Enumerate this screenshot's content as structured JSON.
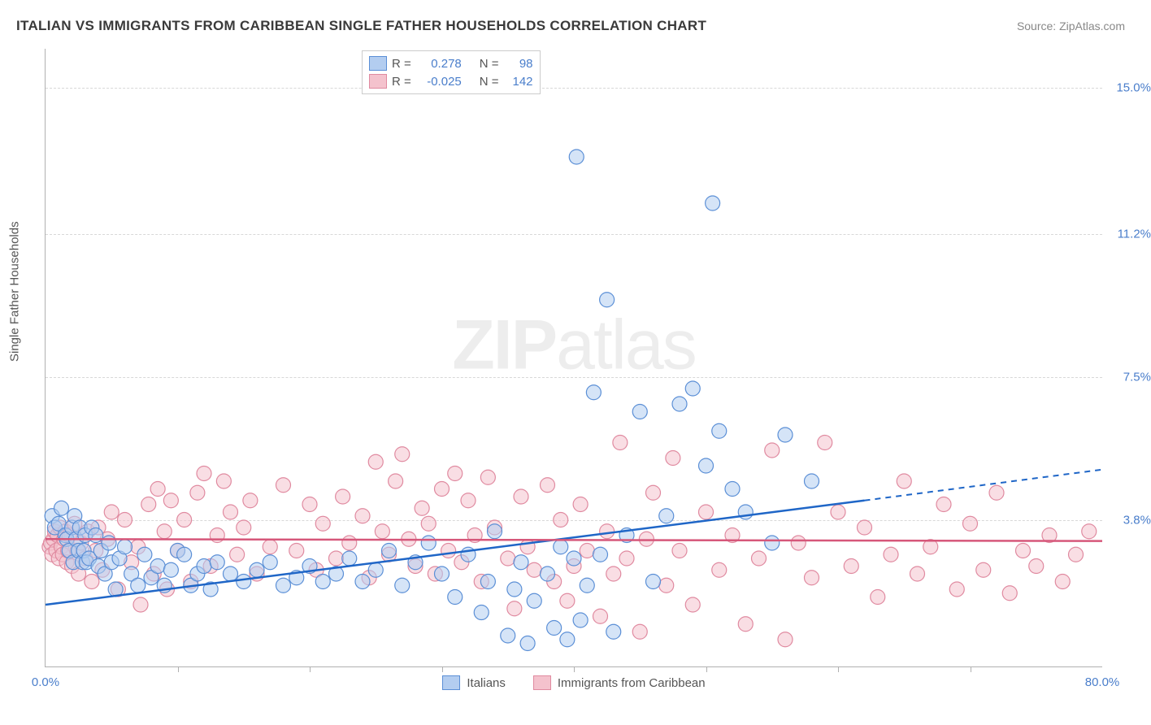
{
  "title": "ITALIAN VS IMMIGRANTS FROM CARIBBEAN SINGLE FATHER HOUSEHOLDS CORRELATION CHART",
  "source": "Source: ZipAtlas.com",
  "ylabel": "Single Father Households",
  "watermark_zip": "ZIP",
  "watermark_atlas": "atlas",
  "chart": {
    "type": "scatter-with-regression",
    "xlim": [
      0,
      80
    ],
    "ylim": [
      0,
      16
    ],
    "xticks_minor": [
      10,
      20,
      30,
      40,
      50,
      60,
      70
    ],
    "xtick_labels": [
      {
        "x": 0,
        "label": "0.0%"
      },
      {
        "x": 80,
        "label": "80.0%"
      }
    ],
    "ytick_labels": [
      {
        "y": 3.8,
        "label": "3.8%"
      },
      {
        "y": 7.5,
        "label": "7.5%"
      },
      {
        "y": 11.2,
        "label": "11.2%"
      },
      {
        "y": 15.0,
        "label": "15.0%"
      }
    ],
    "grid_color": "#d8d8d8",
    "background_color": "#ffffff",
    "marker_radius": 9,
    "marker_stroke_width": 1.2,
    "marker_opacity": 0.55,
    "series": [
      {
        "name": "Italians",
        "fill_color": "#b3cdf0",
        "stroke_color": "#5b8fd6",
        "line_color": "#1f66c7",
        "R": "0.278",
        "N": "98",
        "regression": {
          "y0": 1.6,
          "y_at_62": 4.3,
          "y80": 5.1,
          "x_solid_end": 62
        },
        "points": [
          [
            0.5,
            3.9
          ],
          [
            0.7,
            3.6
          ],
          [
            1.0,
            3.7
          ],
          [
            1.2,
            4.1
          ],
          [
            1.5,
            3.4
          ],
          [
            1.6,
            3.3
          ],
          [
            1.8,
            3.0
          ],
          [
            2.0,
            3.6
          ],
          [
            2.1,
            2.7
          ],
          [
            2.2,
            3.9
          ],
          [
            2.3,
            3.3
          ],
          [
            2.5,
            3.0
          ],
          [
            2.6,
            3.6
          ],
          [
            2.8,
            2.7
          ],
          [
            2.9,
            3.0
          ],
          [
            3.0,
            3.4
          ],
          [
            3.1,
            2.7
          ],
          [
            3.3,
            2.8
          ],
          [
            3.5,
            3.6
          ],
          [
            3.8,
            3.4
          ],
          [
            4.0,
            2.6
          ],
          [
            4.2,
            3.0
          ],
          [
            4.5,
            2.4
          ],
          [
            4.8,
            3.2
          ],
          [
            5.0,
            2.7
          ],
          [
            5.3,
            2.0
          ],
          [
            5.6,
            2.8
          ],
          [
            6.0,
            3.1
          ],
          [
            6.5,
            2.4
          ],
          [
            7.0,
            2.1
          ],
          [
            7.5,
            2.9
          ],
          [
            8.0,
            2.3
          ],
          [
            8.5,
            2.6
          ],
          [
            9.0,
            2.1
          ],
          [
            9.5,
            2.5
          ],
          [
            10.0,
            3.0
          ],
          [
            10.5,
            2.9
          ],
          [
            11.0,
            2.1
          ],
          [
            11.5,
            2.4
          ],
          [
            12.0,
            2.6
          ],
          [
            12.5,
            2.0
          ],
          [
            13.0,
            2.7
          ],
          [
            14.0,
            2.4
          ],
          [
            15.0,
            2.2
          ],
          [
            16.0,
            2.5
          ],
          [
            17.0,
            2.7
          ],
          [
            18.0,
            2.1
          ],
          [
            19.0,
            2.3
          ],
          [
            20.0,
            2.6
          ],
          [
            21.0,
            2.2
          ],
          [
            22.0,
            2.4
          ],
          [
            23.0,
            2.8
          ],
          [
            24.0,
            2.2
          ],
          [
            25.0,
            2.5
          ],
          [
            26.0,
            3.0
          ],
          [
            27.0,
            2.1
          ],
          [
            28.0,
            2.7
          ],
          [
            29.0,
            3.2
          ],
          [
            30.0,
            2.4
          ],
          [
            31.0,
            1.8
          ],
          [
            32.0,
            2.9
          ],
          [
            33.0,
            1.4
          ],
          [
            33.5,
            2.2
          ],
          [
            34.0,
            3.5
          ],
          [
            35.0,
            0.8
          ],
          [
            35.5,
            2.0
          ],
          [
            36.0,
            2.7
          ],
          [
            36.5,
            0.6
          ],
          [
            37.0,
            1.7
          ],
          [
            38.0,
            2.4
          ],
          [
            38.5,
            1.0
          ],
          [
            39.0,
            3.1
          ],
          [
            39.5,
            0.7
          ],
          [
            40.0,
            2.8
          ],
          [
            40.2,
            13.2
          ],
          [
            40.5,
            1.2
          ],
          [
            41.0,
            2.1
          ],
          [
            41.5,
            7.1
          ],
          [
            42.0,
            2.9
          ],
          [
            42.5,
            9.5
          ],
          [
            43.0,
            0.9
          ],
          [
            44.0,
            3.4
          ],
          [
            45.0,
            6.6
          ],
          [
            46.0,
            2.2
          ],
          [
            47.0,
            3.9
          ],
          [
            48.0,
            6.8
          ],
          [
            49.0,
            7.2
          ],
          [
            50.0,
            5.2
          ],
          [
            50.5,
            12.0
          ],
          [
            51.0,
            6.1
          ],
          [
            52.0,
            4.6
          ],
          [
            53.0,
            4.0
          ],
          [
            55.0,
            3.2
          ],
          [
            56.0,
            6.0
          ],
          [
            58.0,
            4.8
          ]
        ]
      },
      {
        "name": "Immigrants from Caribbean",
        "fill_color": "#f4c2cd",
        "stroke_color": "#e08aa0",
        "line_color": "#d6577a",
        "R": "-0.025",
        "N": "142",
        "regression": {
          "y0": 3.3,
          "y_at_62": 3.25,
          "y80": 3.24,
          "x_solid_end": 80
        },
        "points": [
          [
            0.3,
            3.1
          ],
          [
            0.4,
            3.2
          ],
          [
            0.5,
            2.9
          ],
          [
            0.6,
            3.3
          ],
          [
            0.7,
            3.5
          ],
          [
            0.8,
            3.0
          ],
          [
            0.9,
            3.4
          ],
          [
            1.0,
            2.8
          ],
          [
            1.1,
            3.6
          ],
          [
            1.2,
            3.1
          ],
          [
            1.3,
            2.9
          ],
          [
            1.4,
            3.3
          ],
          [
            1.5,
            3.5
          ],
          [
            1.6,
            2.7
          ],
          [
            1.7,
            3.0
          ],
          [
            1.8,
            3.4
          ],
          [
            2.0,
            2.6
          ],
          [
            2.2,
            3.7
          ],
          [
            2.4,
            3.0
          ],
          [
            2.5,
            2.4
          ],
          [
            2.7,
            3.2
          ],
          [
            3.0,
            2.8
          ],
          [
            3.2,
            3.5
          ],
          [
            3.5,
            2.2
          ],
          [
            3.8,
            3.0
          ],
          [
            4.0,
            3.6
          ],
          [
            4.3,
            2.5
          ],
          [
            4.7,
            3.3
          ],
          [
            5.0,
            4.0
          ],
          [
            5.5,
            2.0
          ],
          [
            6.0,
            3.8
          ],
          [
            6.5,
            2.7
          ],
          [
            7.0,
            3.1
          ],
          [
            7.2,
            1.6
          ],
          [
            7.8,
            4.2
          ],
          [
            8.2,
            2.4
          ],
          [
            8.5,
            4.6
          ],
          [
            9.0,
            3.5
          ],
          [
            9.2,
            2.0
          ],
          [
            9.5,
            4.3
          ],
          [
            10.0,
            3.0
          ],
          [
            10.5,
            3.8
          ],
          [
            11.0,
            2.2
          ],
          [
            11.5,
            4.5
          ],
          [
            12.0,
            5.0
          ],
          [
            12.5,
            2.6
          ],
          [
            13.0,
            3.4
          ],
          [
            13.5,
            4.8
          ],
          [
            14.0,
            4.0
          ],
          [
            14.5,
            2.9
          ],
          [
            15.0,
            3.6
          ],
          [
            15.5,
            4.3
          ],
          [
            16.0,
            2.4
          ],
          [
            17.0,
            3.1
          ],
          [
            18.0,
            4.7
          ],
          [
            19.0,
            3.0
          ],
          [
            20.0,
            4.2
          ],
          [
            20.5,
            2.5
          ],
          [
            21.0,
            3.7
          ],
          [
            22.0,
            2.8
          ],
          [
            22.5,
            4.4
          ],
          [
            23.0,
            3.2
          ],
          [
            24.0,
            3.9
          ],
          [
            24.5,
            2.3
          ],
          [
            25.0,
            5.3
          ],
          [
            25.5,
            3.5
          ],
          [
            26.0,
            2.9
          ],
          [
            26.5,
            4.8
          ],
          [
            27.0,
            5.5
          ],
          [
            27.5,
            3.3
          ],
          [
            28.0,
            2.6
          ],
          [
            28.5,
            4.1
          ],
          [
            29.0,
            3.7
          ],
          [
            29.5,
            2.4
          ],
          [
            30.0,
            4.6
          ],
          [
            30.5,
            3.0
          ],
          [
            31.0,
            5.0
          ],
          [
            31.5,
            2.7
          ],
          [
            32.0,
            4.3
          ],
          [
            32.5,
            3.4
          ],
          [
            33.0,
            2.2
          ],
          [
            33.5,
            4.9
          ],
          [
            34.0,
            3.6
          ],
          [
            35.0,
            2.8
          ],
          [
            35.5,
            1.5
          ],
          [
            36.0,
            4.4
          ],
          [
            36.5,
            3.1
          ],
          [
            37.0,
            2.5
          ],
          [
            38.0,
            4.7
          ],
          [
            38.5,
            2.2
          ],
          [
            39.0,
            3.8
          ],
          [
            39.5,
            1.7
          ],
          [
            40.0,
            2.6
          ],
          [
            40.5,
            4.2
          ],
          [
            41.0,
            3.0
          ],
          [
            42.0,
            1.3
          ],
          [
            42.5,
            3.5
          ],
          [
            43.0,
            2.4
          ],
          [
            43.5,
            5.8
          ],
          [
            44.0,
            2.8
          ],
          [
            45.0,
            0.9
          ],
          [
            45.5,
            3.3
          ],
          [
            46.0,
            4.5
          ],
          [
            47.0,
            2.1
          ],
          [
            47.5,
            5.4
          ],
          [
            48.0,
            3.0
          ],
          [
            49.0,
            1.6
          ],
          [
            50.0,
            4.0
          ],
          [
            51.0,
            2.5
          ],
          [
            52.0,
            3.4
          ],
          [
            53.0,
            1.1
          ],
          [
            54.0,
            2.8
          ],
          [
            55.0,
            5.6
          ],
          [
            56.0,
            0.7
          ],
          [
            57.0,
            3.2
          ],
          [
            58.0,
            2.3
          ],
          [
            59.0,
            5.8
          ],
          [
            60.0,
            4.0
          ],
          [
            61.0,
            2.6
          ],
          [
            62.0,
            3.6
          ],
          [
            63.0,
            1.8
          ],
          [
            64.0,
            2.9
          ],
          [
            65.0,
            4.8
          ],
          [
            66.0,
            2.4
          ],
          [
            67.0,
            3.1
          ],
          [
            68.0,
            4.2
          ],
          [
            69.0,
            2.0
          ],
          [
            70.0,
            3.7
          ],
          [
            71.0,
            2.5
          ],
          [
            72.0,
            4.5
          ],
          [
            73.0,
            1.9
          ],
          [
            74.0,
            3.0
          ],
          [
            75.0,
            2.6
          ],
          [
            76.0,
            3.4
          ],
          [
            77.0,
            2.2
          ],
          [
            78.0,
            2.9
          ],
          [
            79.0,
            3.5
          ]
        ]
      }
    ],
    "legend_top": {
      "R_label": "R =",
      "N_label": "N ="
    },
    "legend_bottom": {
      "s1": "Italians",
      "s2": "Immigrants from Caribbean"
    }
  }
}
